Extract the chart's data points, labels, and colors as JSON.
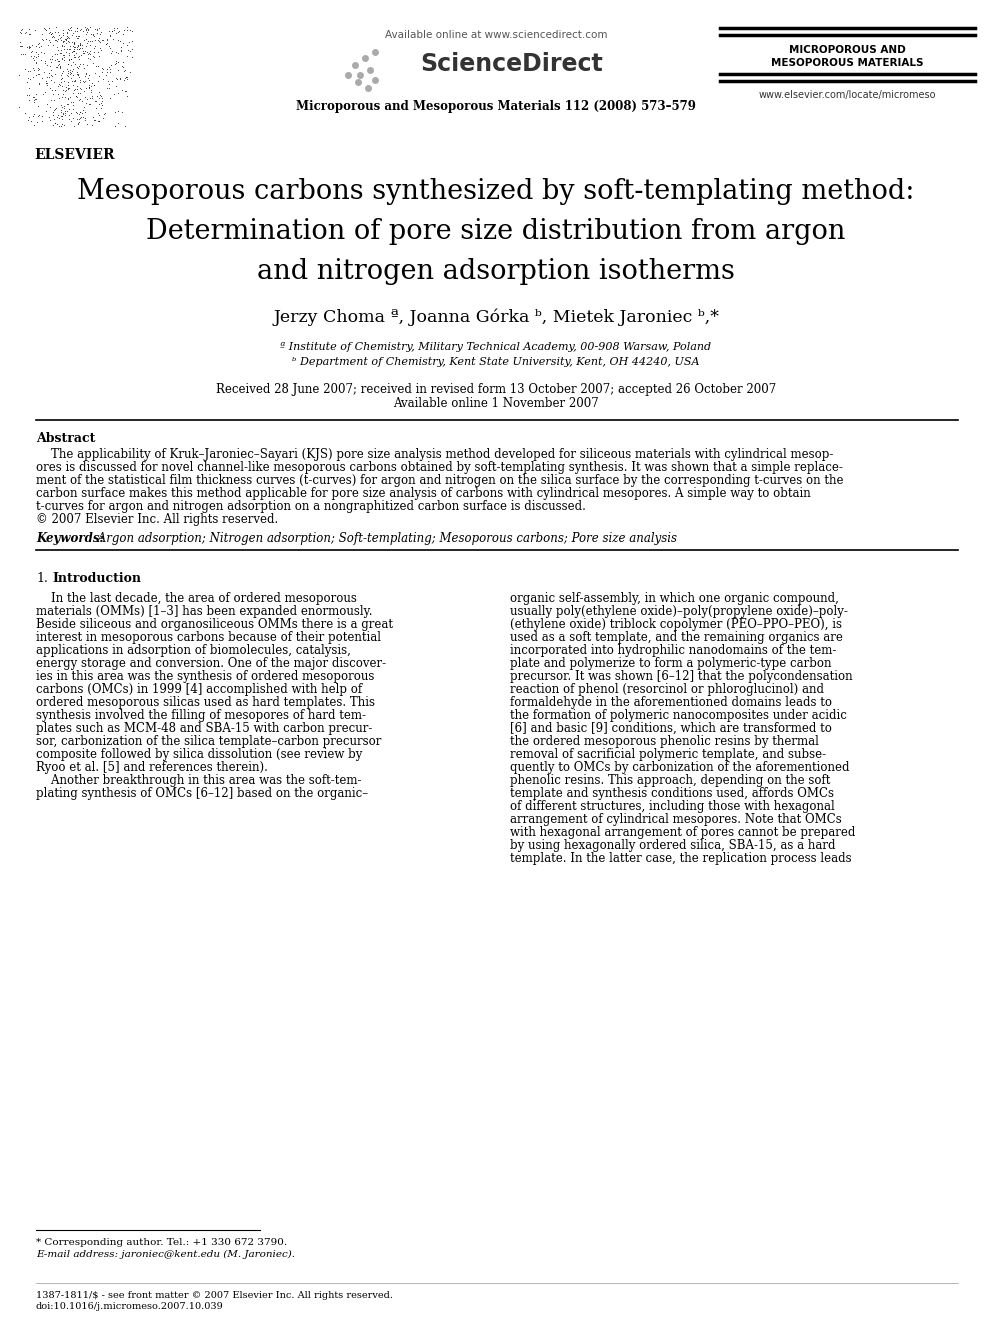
{
  "bg_color": "#ffffff",
  "header": {
    "available_online": "Available online at www.sciencedirect.com",
    "journal_line": "Microporous and Mesoporous Materials 112 (2008) 573–579",
    "journal_name_right": "MICROPOROUS AND\nMESOPOROUS MATERIALS",
    "website": "www.elsevier.com/locate/micromeso",
    "elsevier_label": "ELSEVIER"
  },
  "title_lines": [
    "Mesoporous carbons synthesized by soft-templating method:",
    "Determination of pore size distribution from argon",
    "and nitrogen adsorption isotherms"
  ],
  "authors": "Jerzy Choma ª, Joanna Górka ᵇ, Mietek Jaroniec ᵇ,*",
  "affil_a": "ª Institute of Chemistry, Military Technical Academy, 00-908 Warsaw, Poland",
  "affil_b": "ᵇ Department of Chemistry, Kent State University, Kent, OH 44240, USA",
  "received_line": "Received 28 June 2007; received in revised form 13 October 2007; accepted 26 October 2007",
  "available_line": "Available online 1 November 2007",
  "abstract_heading": "Abstract",
  "abstract_text": "    The applicability of Kruk–Jaroniec–Sayari (KJS) pore size analysis method developed for siliceous materials with cylindrical mesop-\nores is discussed for novel channel-like mesoporous carbons obtained by soft-templating synthesis. It was shown that a simple replace-\nment of the statistical film thickness curves (t-curves) for argon and nitrogen on the silica surface by the corresponding t-curves on the\ncarbon surface makes this method applicable for pore size analysis of carbons with cylindrical mesopores. A simple way to obtain\nt-curves for argon and nitrogen adsorption on a nongraphitized carbon surface is discussed.\n© 2007 Elsevier Inc. All rights reserved.",
  "keywords_bold": "Keywords: ",
  "keywords_italic": " Argon adsorption; Nitrogen adsorption; Soft-templating; Mesoporous carbons; Pore size analysis",
  "section1_num": "1.",
  "section1_title": " Introduction",
  "intro_left": "    In the last decade, the area of ordered mesoporous\nmaterials (OMMs) [1–3] has been expanded enormously.\nBeside siliceous and organosiliceous OMMs there is a great\ninterest in mesoporous carbons because of their potential\napplications in adsorption of biomolecules, catalysis,\nenergy storage and conversion. One of the major discover-\nies in this area was the synthesis of ordered mesoporous\ncarbons (OMCs) in 1999 [4] accomplished with help of\nordered mesoporous silicas used as hard templates. This\nsynthesis involved the filling of mesopores of hard tem-\nplates such as MCM-48 and SBA-15 with carbon precur-\nsor, carbonization of the silica template–carbon precursor\ncomposite followed by silica dissolution (see review by\nRyoo et al. [5] and references therein).\n    Another breakthrough in this area was the soft-tem-\nplating synthesis of OMCs [6–12] based on the organic–",
  "intro_right": "organic self-assembly, in which one organic compound,\nusually poly(ethylene oxide)–poly(propylene oxide)–poly-\n(ethylene oxide) triblock copolymer (PEO–PPO–PEO), is\nused as a soft template, and the remaining organics are\nincorporated into hydrophilic nanodomains of the tem-\nplate and polymerize to form a polymeric-type carbon\nprecursor. It was shown [6–12] that the polycondensation\nreaction of phenol (resorcinol or phloroglucinol) and\nformaldehyde in the aforementioned domains leads to\nthe formation of polymeric nanocomposites under acidic\n[6] and basic [9] conditions, which are transformed to\nthe ordered mesoporous phenolic resins by thermal\nremoval of sacrificial polymeric template, and subse-\nquently to OMCs by carbonization of the aforementioned\nphenolic resins. This approach, depending on the soft\ntemplate and synthesis conditions used, affords OMCs\nof different structures, including those with hexagonal\narrangement of cylindrical mesopores. Note that OMCs\nwith hexagonal arrangement of pores cannot be prepared\nby using hexagonally ordered silica, SBA-15, as a hard\ntemplate. In the latter case, the replication process leads",
  "footnote_star": "* Corresponding author. Tel.: +1 330 672 3790.",
  "footnote_email": "E-mail address: jaroniec@kent.edu (M. Jaroniec).",
  "footer_issn": "1387-1811/$ - see front matter © 2007 Elsevier Inc. All rights reserved.",
  "footer_doi": "doi:10.1016/j.micromeso.2007.10.039"
}
